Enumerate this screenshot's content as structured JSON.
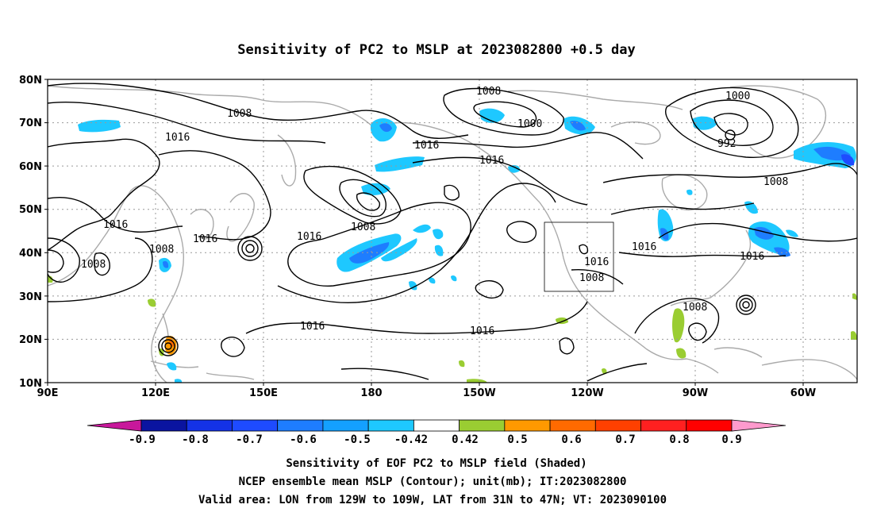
{
  "title": "Sensitivity of PC2 to MSLP at 2023082800 +0.5 day",
  "lat_labels": [
    "80N",
    "70N",
    "60N",
    "50N",
    "40N",
    "30N",
    "20N",
    "10N"
  ],
  "lon_labels": [
    "90E",
    "120E",
    "150E",
    "180",
    "150W",
    "120W",
    "90W",
    "60W"
  ],
  "contour_labels": [
    "1008",
    "1000",
    "1000",
    "992",
    "1016",
    "1016",
    "1016",
    "1008",
    "1008",
    "1016",
    "1016",
    "1008",
    "1016",
    "1016",
    "1008",
    "1016",
    "1008",
    "1016",
    "1016",
    "1008",
    "1016",
    "1008"
  ],
  "colorbar": {
    "labels": [
      "-0.9",
      "-0.8",
      "-0.7",
      "-0.6",
      "-0.5",
      "-0.42",
      "0.42",
      "0.5",
      "0.6",
      "0.7",
      "0.8",
      "0.9"
    ],
    "colors": [
      "#c8189b",
      "#0a14a0",
      "#1432e6",
      "#1e4bff",
      "#1e7dff",
      "#14a0ff",
      "#1ec8ff",
      "#ffffff",
      "#9acd32",
      "#ff9900",
      "#ff6a00",
      "#ff4000",
      "#ff2020",
      "#ff0000",
      "#ff9acd"
    ]
  },
  "valid_box": {
    "lon_range": [
      "129W",
      "109W"
    ],
    "lat_range": [
      "31N",
      "47N"
    ]
  },
  "captions": [
    "Sensitivity of EOF PC2 to MSLP field (Shaded)",
    "NCEP ensemble mean MSLP (Contour); unit(mb); IT:2023082800",
    "Valid area: LON from 129W to 109W, LAT from 31N to 47N; VT: 2023090100"
  ]
}
